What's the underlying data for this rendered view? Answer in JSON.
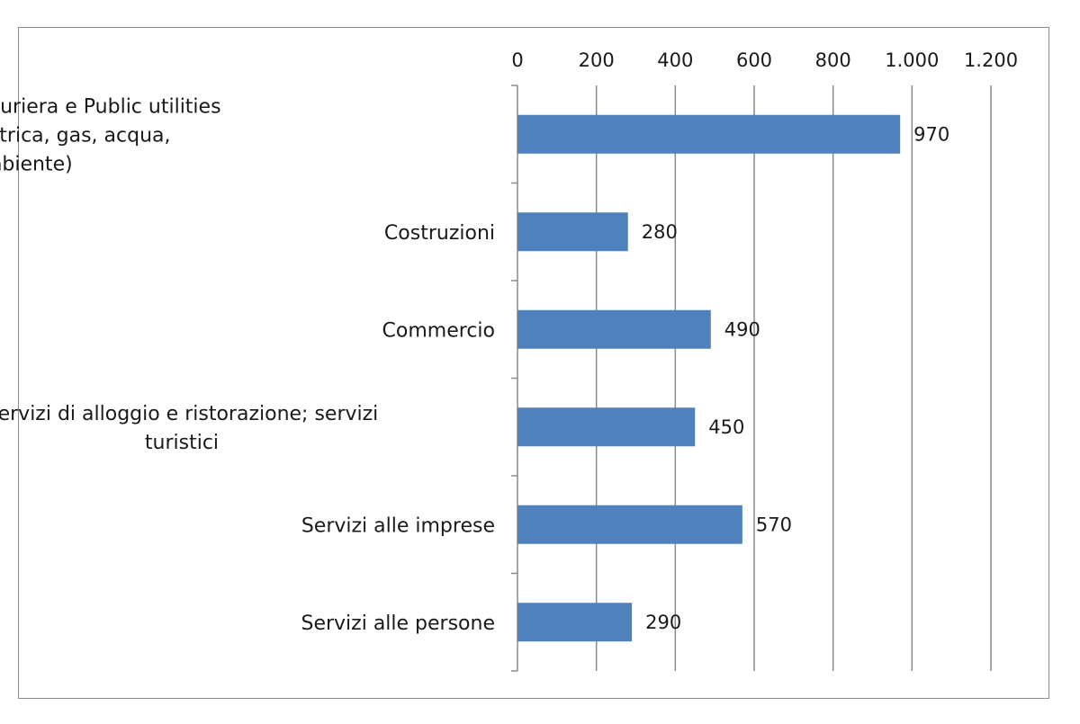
{
  "chart_data": {
    "type": "bar",
    "orientation": "horizontal",
    "title": "",
    "xlabel": "",
    "ylabel": "",
    "xlim": [
      0,
      1200
    ],
    "ticks": [
      0,
      200,
      400,
      600,
      800,
      1000,
      1200
    ],
    "tick_labels": [
      "0",
      "200",
      "400",
      "600",
      "800",
      "1.000",
      "1.200"
    ],
    "tick_position": "top",
    "grid": true,
    "legend": "none",
    "bar_color": "#4f81bd",
    "categories": [
      "Industria manifatturiera e Public utilities (energia elettrica, gas, acqua, ambiente)",
      "Costruzioni",
      "Commercio",
      "Servizi di alloggio e ristorazione; servizi turistici",
      "Servizi alle imprese",
      "Servizi alle persone"
    ],
    "category_lines": [
      [
        "Industria manifatturiera e Public utilities",
        "(energia elettrica, gas, acqua,",
        "ambiente)"
      ],
      [
        "Costruzioni"
      ],
      [
        "Commercio"
      ],
      [
        "Servizi di alloggio e ristorazione; servizi",
        "turistici"
      ],
      [
        "Servizi alle imprese"
      ],
      [
        "Servizi alle persone"
      ]
    ],
    "values": [
      970,
      280,
      490,
      450,
      570,
      290
    ],
    "data_labels": [
      "970",
      "280",
      "490",
      "450",
      "570",
      "290"
    ]
  }
}
